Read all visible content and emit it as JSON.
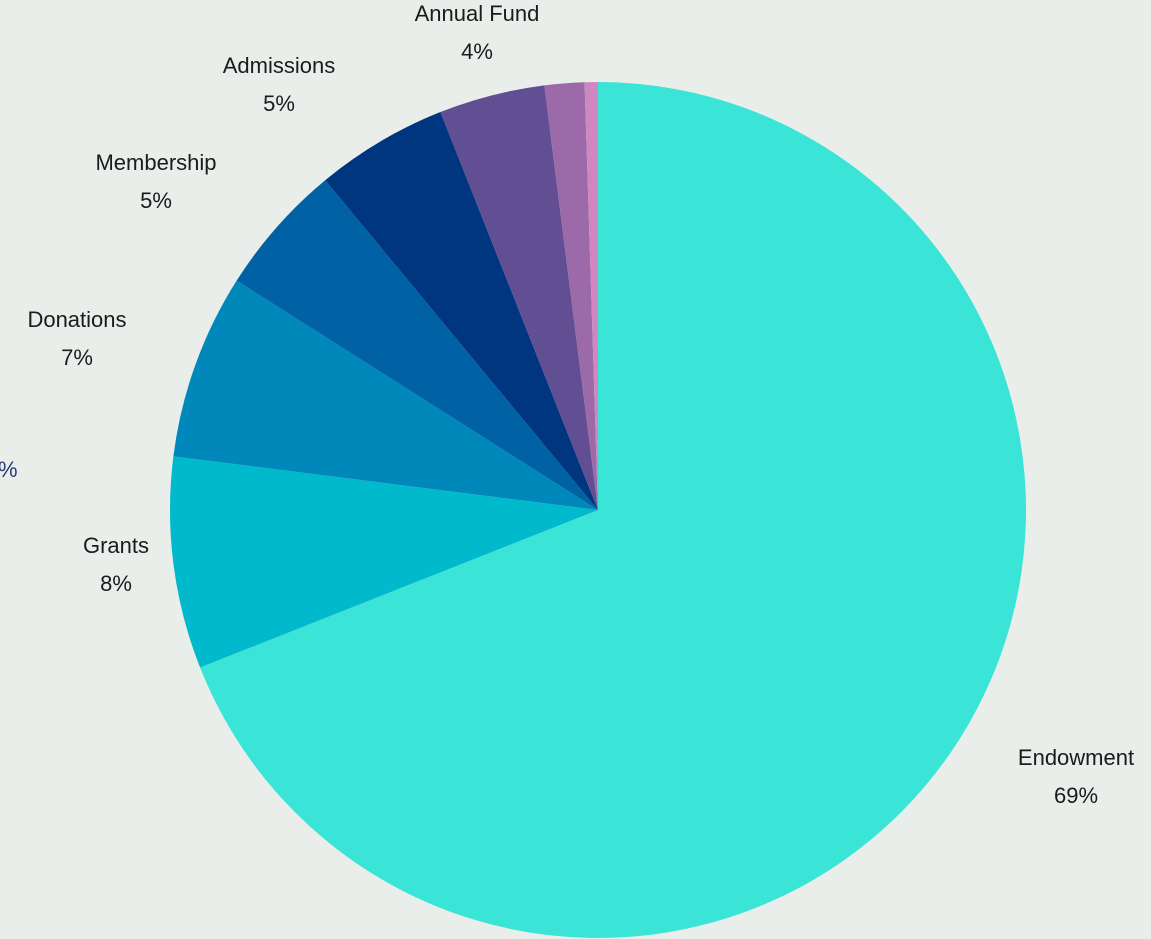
{
  "chart_data": {
    "type": "pie",
    "slices": [
      {
        "name": "Endowment",
        "value": 69,
        "label": "69%",
        "color": "#3ae4d6"
      },
      {
        "name": "Grants",
        "value": 8,
        "label": "8%",
        "color": "#00b9cc"
      },
      {
        "name": "Donations",
        "value": 7,
        "label": "7%",
        "color": "#0088ba"
      },
      {
        "name": "Membership",
        "value": 5,
        "label": "5%",
        "color": "#0062a5"
      },
      {
        "name": "Admissions",
        "value": 5,
        "label": "5%",
        "color": "#00357f"
      },
      {
        "name": "Annual Fund",
        "value": 4,
        "label": "4%",
        "color": "#624e93"
      },
      {
        "name": "",
        "value": 1.5,
        "label": "",
        "color": "#9c6aa8"
      },
      {
        "name": "",
        "value": 0.5,
        "label": "",
        "color": "#cf88bf"
      }
    ],
    "partial_label": "%",
    "start_angle": "12 o'clock",
    "direction": "clockwise"
  }
}
